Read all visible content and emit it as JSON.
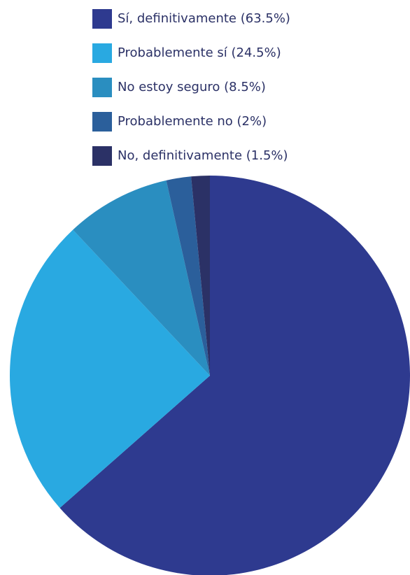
{
  "chart_data": {
    "type": "pie",
    "categories": [
      "Sí, definitivamente (63.5%)",
      "Probablemente sí (24.5%)",
      "No estoy seguro (8.5%)",
      "Probablemente no (2%)",
      "No, definitivamente (1.5%)"
    ],
    "values": [
      63.5,
      24.5,
      8.5,
      2,
      1.5
    ],
    "colors": [
      "#2e3a8f",
      "#29a9e1",
      "#2a8ec0",
      "#2b5f9b",
      "#2b3166"
    ]
  }
}
